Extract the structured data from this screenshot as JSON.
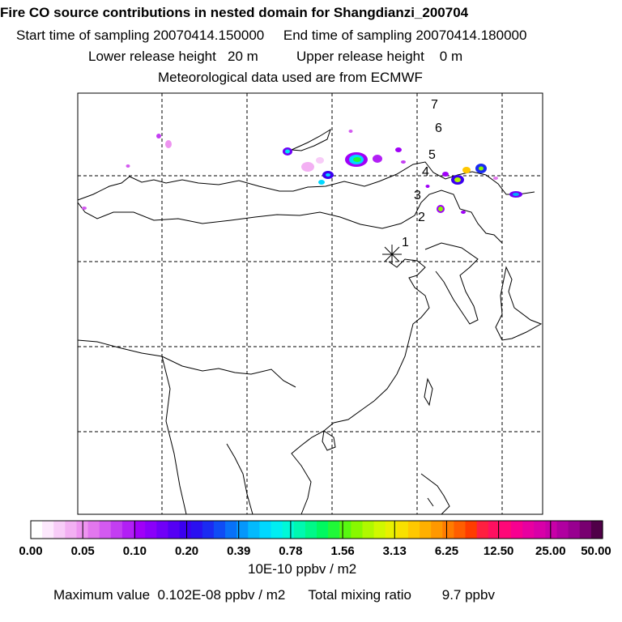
{
  "header": {
    "title": "Fire CO source contributions in nested domain for Shangdianzi_200704",
    "start_label": "Start time of sampling",
    "start_value": "20070414.150000",
    "end_label": "End time of sampling",
    "end_value": "20070414.180000",
    "lower_label": "Lower release height",
    "lower_value": "20 m",
    "upper_label": "Upper release height",
    "upper_value": "0 m",
    "met_note": "Meteorological data used are from ECMWF"
  },
  "map": {
    "trajectory_labels": [
      "1",
      "2",
      "3",
      "4",
      "5",
      "6",
      "7"
    ],
    "receptor_marker": "star-cross"
  },
  "colorbar": {
    "ticks": [
      "0.00",
      "0.05",
      "0.10",
      "0.20",
      "0.39",
      "0.78",
      "1.56",
      "3.13",
      "6.25",
      "12.50",
      "25.00",
      "50.00"
    ],
    "colors": [
      "#ffffff",
      "#fde8fd",
      "#f8ccf8",
      "#f3b0f3",
      "#ee94f0",
      "#e277ee",
      "#d35af0",
      "#c33ef2",
      "#b21ff5",
      "#a000f8",
      "#8a00fa",
      "#7000f8",
      "#5500f4",
      "#3b00f0",
      "#2a10f0",
      "#1b2bf2",
      "#0f4cf5",
      "#0871f8",
      "#0597fb",
      "#03bafd",
      "#00d8ff",
      "#00eef2",
      "#00f8d8",
      "#00f8b0",
      "#00f888",
      "#00f860",
      "#20f838",
      "#58f810",
      "#88f800",
      "#b0f800",
      "#d0f800",
      "#e8f000",
      "#f8e000",
      "#ffc800",
      "#ffb000",
      "#ff9800",
      "#ff7c00",
      "#ff5e00",
      "#ff3c00",
      "#ff2040",
      "#ff1060",
      "#ff0878",
      "#f80090",
      "#e800a0",
      "#d800a8",
      "#c800a8",
      "#b000a0",
      "#980090",
      "#780070",
      "#500048"
    ],
    "units": "10E-10 ppbv / m2"
  },
  "stats": {
    "max_label": "Maximum value",
    "max_value": "0.102E-08 ppbv / m2",
    "total_label": "Total mixing ratio",
    "total_value": "9.7 ppbv"
  }
}
